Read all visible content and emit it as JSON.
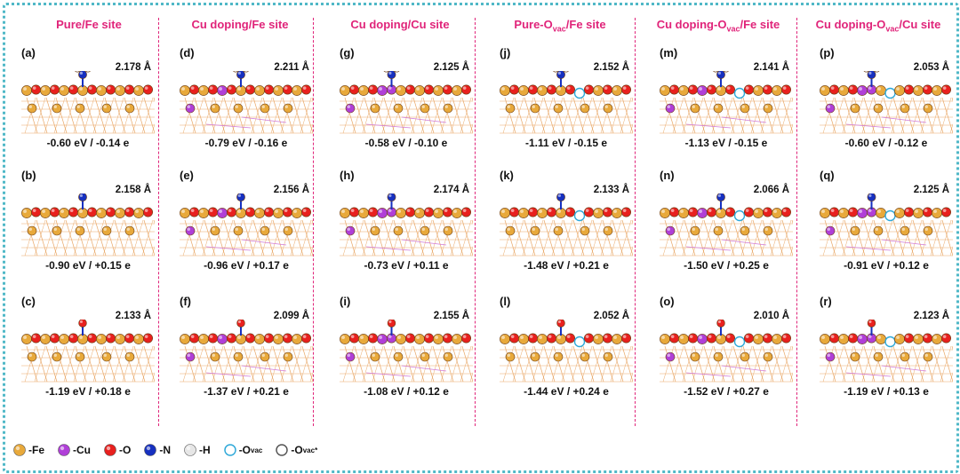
{
  "headers": [
    {
      "pre": "Pure/Fe site",
      "sub": "",
      "post": ""
    },
    {
      "pre": "Cu doping/Fe site",
      "sub": "",
      "post": ""
    },
    {
      "pre": "Cu doping/Cu site",
      "sub": "",
      "post": ""
    },
    {
      "pre": "Pure-O",
      "sub": "vac",
      "post": "/Fe site"
    },
    {
      "pre": "Cu doping-O",
      "sub": "vac",
      "post": "/Fe site"
    },
    {
      "pre": "Cu doping-O",
      "sub": "vac",
      "post": "/Cu site"
    }
  ],
  "panels": [
    {
      "label": "(a)",
      "distance": "2.178 Å",
      "energy": "-0.60 eV /  -0.14 e",
      "adsorbate": "NH3",
      "site": "Fe",
      "cu_doped": false,
      "vacancy": false
    },
    {
      "label": "(b)",
      "distance": "2.158 Å",
      "energy": "-0.90 eV / +0.15 e",
      "adsorbate": "NO",
      "site": "Fe",
      "cu_doped": false,
      "vacancy": false
    },
    {
      "label": "(c)",
      "distance": "2.133 Å",
      "energy": "-1.19 eV / +0.18 e",
      "adsorbate": "NO2",
      "site": "Fe",
      "cu_doped": false,
      "vacancy": false
    },
    {
      "label": "(d)",
      "distance": "2.211 Å",
      "energy": "-0.79 eV / -0.16 e",
      "adsorbate": "NH3",
      "site": "Fe",
      "cu_doped": true,
      "vacancy": false
    },
    {
      "label": "(e)",
      "distance": "2.156 Å",
      "energy": "-0.96 eV / +0.17 e",
      "adsorbate": "NO",
      "site": "Fe",
      "cu_doped": true,
      "vacancy": false
    },
    {
      "label": "(f)",
      "distance": "2.099 Å",
      "energy": "-1.37 eV / +0.21 e",
      "adsorbate": "NO2",
      "site": "Fe",
      "cu_doped": true,
      "vacancy": false
    },
    {
      "label": "(g)",
      "distance": "2.125 Å",
      "energy": "-0.58 eV / -0.10 e",
      "adsorbate": "NH3",
      "site": "Cu",
      "cu_doped": true,
      "vacancy": false
    },
    {
      "label": "(h)",
      "distance": "2.174 Å",
      "energy": "-0.73 eV / +0.11 e",
      "adsorbate": "NO",
      "site": "Cu",
      "cu_doped": true,
      "vacancy": false
    },
    {
      "label": "(i)",
      "distance": "2.155 Å",
      "energy": "-1.08 eV / +0.12 e",
      "adsorbate": "NO2",
      "site": "Cu",
      "cu_doped": true,
      "vacancy": false
    },
    {
      "label": "(j)",
      "distance": "2.152 Å",
      "energy": "-1.11 eV / -0.15 e",
      "adsorbate": "NH3",
      "site": "Fe",
      "cu_doped": false,
      "vacancy": true
    },
    {
      "label": "(k)",
      "distance": "2.133 Å",
      "energy": "-1.48 eV / +0.21 e",
      "adsorbate": "NO",
      "site": "Fe",
      "cu_doped": false,
      "vacancy": true
    },
    {
      "label": "(l)",
      "distance": "2.052 Å",
      "energy": "-1.44 eV / +0.24 e",
      "adsorbate": "NO2",
      "site": "Fe",
      "cu_doped": false,
      "vacancy": true
    },
    {
      "label": "(m)",
      "distance": "2.141 Å",
      "energy": "-1.13 eV / -0.15 e",
      "adsorbate": "NH3",
      "site": "Fe",
      "cu_doped": true,
      "vacancy": true
    },
    {
      "label": "(n)",
      "distance": "2.066 Å",
      "energy": "-1.50 eV / +0.25 e",
      "adsorbate": "NO",
      "site": "Fe",
      "cu_doped": true,
      "vacancy": true
    },
    {
      "label": "(o)",
      "distance": "2.010 Å",
      "energy": "-1.52 eV / +0.27 e",
      "adsorbate": "NO2",
      "site": "Fe",
      "cu_doped": true,
      "vacancy": true
    },
    {
      "label": "(p)",
      "distance": "2.053 Å",
      "energy": "-0.60 eV / -0.12 e",
      "adsorbate": "NH3",
      "site": "Cu",
      "cu_doped": true,
      "vacancy": true
    },
    {
      "label": "(q)",
      "distance": "2.125 Å",
      "energy": "-0.91 eV / +0.12 e",
      "adsorbate": "NO",
      "site": "Cu",
      "cu_doped": true,
      "vacancy": true
    },
    {
      "label": "(r)",
      "distance": "2.123 Å",
      "energy": "-1.19 eV / +0.13 e",
      "adsorbate": "NO2",
      "site": "Cu",
      "cu_doped": true,
      "vacancy": true
    }
  ],
  "legend": [
    {
      "pre": "-Fe",
      "sub": "",
      "post": "",
      "color": "#e8a93b",
      "kind": "atom"
    },
    {
      "pre": "-Cu",
      "sub": "",
      "post": "",
      "color": "#b03fd8",
      "kind": "atom"
    },
    {
      "pre": "-O",
      "sub": "",
      "post": "",
      "color": "#e8201e",
      "kind": "atom"
    },
    {
      "pre": "-N",
      "sub": "",
      "post": "",
      "color": "#1630c0",
      "kind": "atom"
    },
    {
      "pre": "-H",
      "sub": "",
      "post": "",
      "color": "#e6e6e6",
      "kind": "atom"
    },
    {
      "pre": "-O",
      "sub": "vac",
      "post": "",
      "color": "#2ea8d8",
      "kind": "ring"
    },
    {
      "pre": "-O",
      "sub": "vac",
      "post": "*",
      "color": "#555555",
      "kind": "ring"
    }
  ],
  "colors": {
    "accent": "#e0247a",
    "frame": "#4fb8c7",
    "fe": "#e8a93b",
    "cu": "#b03fd8",
    "o": "#e8201e",
    "n": "#1630c0",
    "h": "#e6e6e6",
    "vac": "#2ea8d8",
    "lattice": "#e9a868"
  }
}
